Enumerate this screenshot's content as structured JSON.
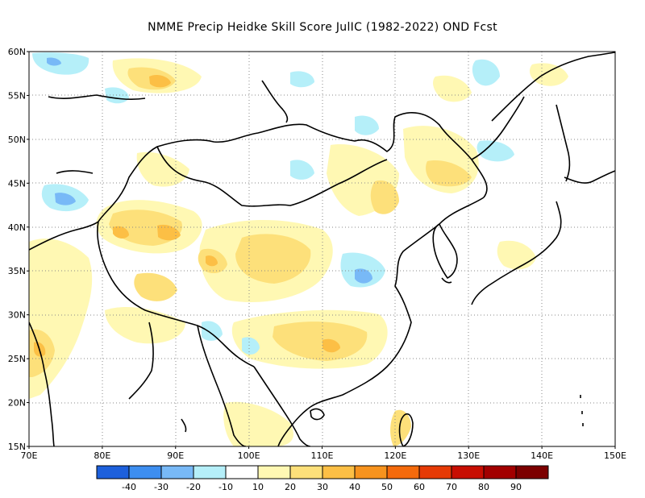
{
  "title": "NMME Precip Heidke Skill Score JulIC (1982-2022) OND Fcst",
  "map": {
    "lon_range": [
      70,
      150
    ],
    "lat_range": [
      15,
      60
    ],
    "lon_ticks": [
      "70E",
      "80E",
      "90E",
      "100E",
      "110E",
      "120E",
      "130E",
      "140E",
      "150E"
    ],
    "lat_ticks": [
      "60N",
      "55N",
      "50N",
      "45N",
      "40N",
      "35N",
      "30N",
      "25N",
      "20N",
      "15N"
    ],
    "grid": "dotted"
  },
  "legend": {
    "colors": [
      "#1d60dc",
      "#3d8ef0",
      "#78b9f7",
      "#b5eff9",
      "#ffffff",
      "#fff8b3",
      "#fde07a",
      "#fcbf45",
      "#f7931e",
      "#f46a0c",
      "#e63a06",
      "#c80e02",
      "#a20000",
      "#7c0000"
    ],
    "labels": [
      "-40",
      "-30",
      "-20",
      "-10",
      "10",
      "20",
      "30",
      "40",
      "50",
      "60",
      "70",
      "80",
      "90"
    ]
  }
}
